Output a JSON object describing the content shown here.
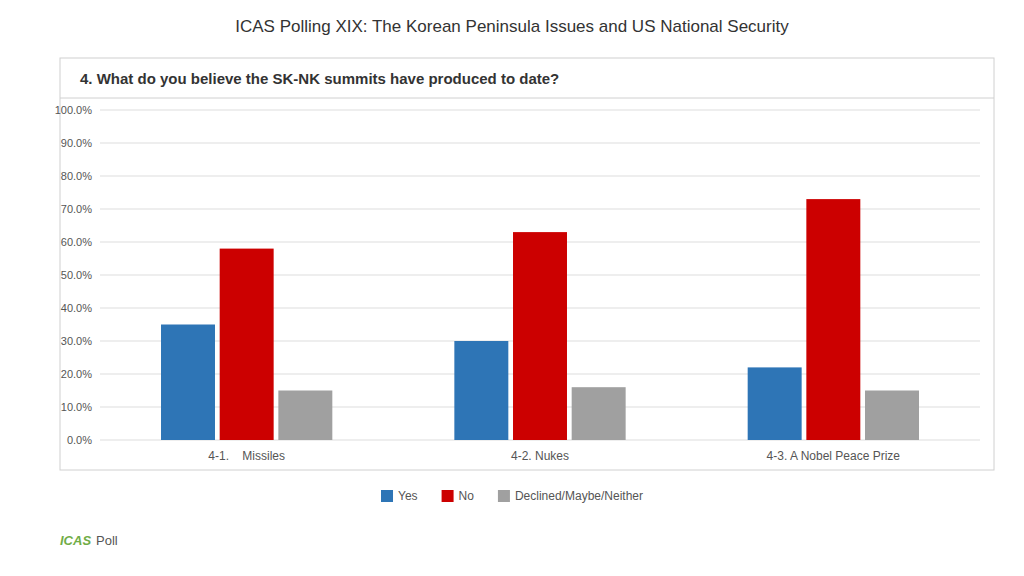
{
  "chart_data": {
    "type": "bar",
    "title": "ICAS Polling XIX: The Korean Peninsula Issues and US National Security",
    "subtitle": "4. What do you believe the SK-NK summits have produced to date?",
    "categories": [
      "4-1.    Missiles",
      "4-2. Nukes",
      "4-3. A Nobel Peace Prize"
    ],
    "series": [
      {
        "name": "Yes",
        "color": "#2E75B6",
        "values": [
          0.35,
          0.3,
          0.22
        ]
      },
      {
        "name": "No",
        "color": "#CC0000",
        "values": [
          0.58,
          0.63,
          0.73
        ]
      },
      {
        "name": "Declined/Maybe/Neither",
        "color": "#A0A0A0",
        "values": [
          0.15,
          0.16,
          0.15
        ]
      }
    ],
    "ylim": [
      0.0,
      1.0
    ],
    "yticks": [
      {
        "value": 0.0,
        "label": "0.0%"
      },
      {
        "value": 0.1,
        "label": "10.0%"
      },
      {
        "value": 0.2,
        "label": "20.0%"
      },
      {
        "value": 0.3,
        "label": "30.0%"
      },
      {
        "value": 0.4,
        "label": "40.0%"
      },
      {
        "value": 0.5,
        "label": "50.0%"
      },
      {
        "value": 0.6,
        "label": "60.0%"
      },
      {
        "value": 0.7,
        "label": "70.0%"
      },
      {
        "value": 0.8,
        "label": "80.0%"
      },
      {
        "value": 0.9,
        "label": "90.0%"
      },
      {
        "value": 1.0,
        "label": "100.0%"
      }
    ],
    "grid": true,
    "legend": "bottom",
    "annotations": [
      {
        "text": "ICAS",
        "color": "#70AD47"
      },
      {
        "text": "Poll"
      }
    ]
  }
}
